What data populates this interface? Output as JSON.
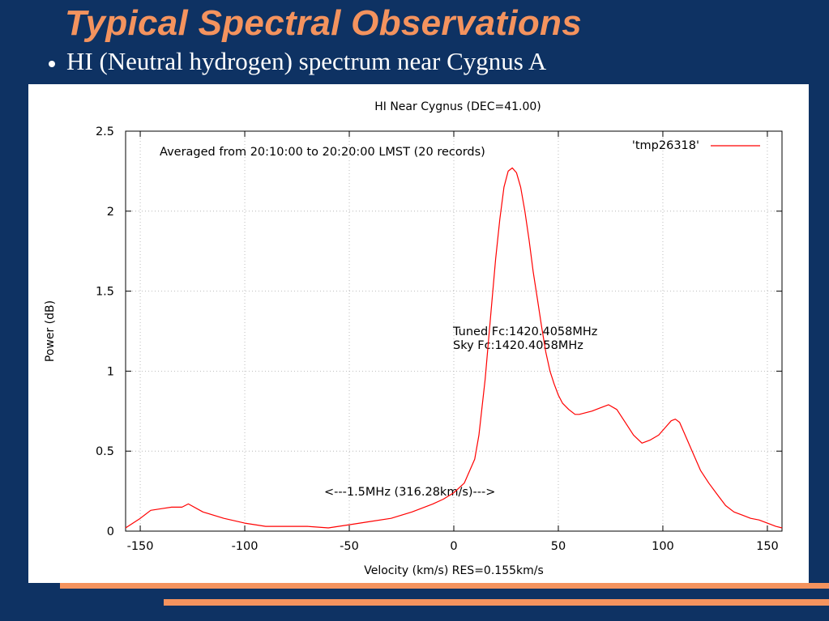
{
  "slide": {
    "title": "Typical Spectral Observations",
    "bullet": "HI (Neutral hydrogen) spectrum near Cygnus A"
  },
  "colors": {
    "background": "#0e3263",
    "title": "#f4935e",
    "accent_stripe": "#f4935e",
    "series": "#ff0000"
  },
  "chart_data": {
    "type": "line",
    "title": "HI Near Cygnus (DEC=41.00)",
    "xlabel": "Velocity (km/s) RES=0.155km/s",
    "ylabel": "Power (dB)",
    "xlim": [
      -157,
      157
    ],
    "ylim": [
      0,
      2.5
    ],
    "xticks": [
      -150,
      -100,
      -50,
      0,
      50,
      100,
      150
    ],
    "yticks": [
      0,
      0.5,
      1,
      1.5,
      2,
      2.5
    ],
    "ytick_labels": [
      "0",
      "0.5",
      "1",
      "1.5",
      "2",
      "2.5"
    ],
    "grid": true,
    "legend_position": "top-right",
    "annotations": {
      "averaged": "Averaged from 20:10:00 to 20:20:00 LMST (20 records)",
      "tuned": "Tuned Fc:1420.4058MHz",
      "sky": "Sky Fc:1420.4058MHz",
      "bandwidth": "<---1.5MHz (316.28km/s)--->"
    },
    "series": [
      {
        "name": "'tmp26318'",
        "x": [
          -157,
          -150,
          -145,
          -140,
          -135,
          -130,
          -127,
          -120,
          -110,
          -100,
          -90,
          -80,
          -70,
          -60,
          -50,
          -40,
          -30,
          -20,
          -10,
          -5,
          0,
          5,
          10,
          12,
          15,
          18,
          20,
          22,
          24,
          26,
          28,
          30,
          32,
          34,
          36,
          38,
          40,
          42,
          44,
          46,
          48,
          50,
          52,
          55,
          58,
          60,
          63,
          66,
          70,
          74,
          78,
          82,
          86,
          90,
          94,
          98,
          102,
          104,
          106,
          108,
          110,
          114,
          118,
          122,
          126,
          130,
          134,
          138,
          142,
          146,
          150,
          154,
          157
        ],
        "y": [
          0.02,
          0.08,
          0.13,
          0.14,
          0.15,
          0.15,
          0.17,
          0.12,
          0.08,
          0.05,
          0.03,
          0.03,
          0.03,
          0.02,
          0.04,
          0.06,
          0.08,
          0.12,
          0.17,
          0.2,
          0.24,
          0.3,
          0.45,
          0.6,
          0.95,
          1.4,
          1.7,
          1.95,
          2.15,
          2.25,
          2.27,
          2.24,
          2.15,
          2.0,
          1.82,
          1.62,
          1.45,
          1.28,
          1.12,
          1.0,
          0.92,
          0.85,
          0.8,
          0.76,
          0.73,
          0.73,
          0.74,
          0.75,
          0.77,
          0.79,
          0.76,
          0.68,
          0.6,
          0.55,
          0.57,
          0.6,
          0.66,
          0.69,
          0.7,
          0.68,
          0.62,
          0.5,
          0.38,
          0.3,
          0.23,
          0.16,
          0.12,
          0.1,
          0.08,
          0.07,
          0.05,
          0.03,
          0.02
        ]
      }
    ]
  }
}
